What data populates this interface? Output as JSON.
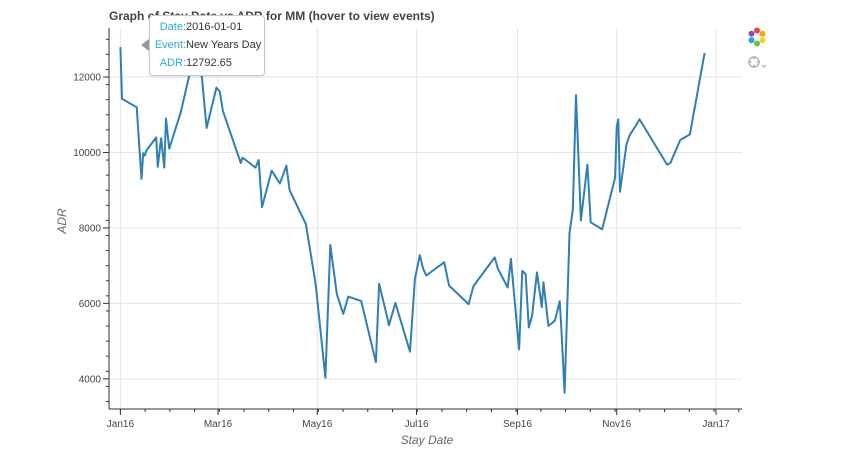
{
  "title": "Graph of Stay Date vs ADR for MM (hover to view events)",
  "tooltip": {
    "date_key": "Date:",
    "date_val": "2016-01-01",
    "event_key": "Event:",
    "event_val": "New Years Day",
    "adr_key": "ADR:",
    "adr_val": "12792.65"
  },
  "toolbar": {
    "logo": "bokeh-logo-icon",
    "hover": "crosshair-hover-icon"
  },
  "colors": {
    "line": "#2f7fb5",
    "grid": "#e5e5e5",
    "tooltip_key": "#26aae1"
  },
  "chart_data": {
    "type": "line",
    "xlabel": "Stay Date",
    "ylabel": "ADR",
    "xlim": [
      "2015-12-25",
      "2017-01-17"
    ],
    "ylim": [
      3200,
      13300
    ],
    "grid": true,
    "x_ticks": [
      {
        "label": "Jan16",
        "date": "2016-01-01"
      },
      {
        "label": "Mar16",
        "date": "2016-03-01"
      },
      {
        "label": "May16",
        "date": "2016-05-01"
      },
      {
        "label": "Jul16",
        "date": "2016-07-01"
      },
      {
        "label": "Sep16",
        "date": "2016-09-01"
      },
      {
        "label": "Nov16",
        "date": "2016-11-01"
      },
      {
        "label": "Jan17",
        "date": "2017-01-01"
      }
    ],
    "y_ticks": [
      4000,
      6000,
      8000,
      10000,
      12000
    ],
    "series": [
      {
        "color": "#2f7fb5",
        "x": [
          "2016-01-01",
          "2016-01-02",
          "2016-01-11",
          "2016-01-14",
          "2016-01-15",
          "2016-01-16",
          "2016-01-17",
          "2016-01-23",
          "2016-01-24",
          "2016-01-26",
          "2016-01-28",
          "2016-01-29",
          "2016-01-31",
          "2016-02-07",
          "2016-02-14",
          "2016-02-20",
          "2016-02-23",
          "2016-02-29",
          "2016-03-02",
          "2016-03-04",
          "2016-03-15",
          "2016-03-16",
          "2016-03-17",
          "2016-03-18",
          "2016-03-24",
          "2016-03-26",
          "2016-03-28",
          "2016-04-03",
          "2016-04-08",
          "2016-04-12",
          "2016-04-14",
          "2016-04-24",
          "2016-04-30",
          "2016-05-06",
          "2016-05-09",
          "2016-05-13",
          "2016-05-17",
          "2016-05-20",
          "2016-05-28",
          "2016-06-06",
          "2016-06-08",
          "2016-06-13",
          "2016-06-14",
          "2016-06-18",
          "2016-06-27",
          "2016-06-30",
          "2016-07-03",
          "2016-07-05",
          "2016-07-07",
          "2016-07-18",
          "2016-07-21",
          "2016-08-02",
          "2016-08-05",
          "2016-08-18",
          "2016-08-20",
          "2016-08-26",
          "2016-08-28",
          "2016-08-30",
          "2016-09-02",
          "2016-09-04",
          "2016-09-06",
          "2016-09-08",
          "2016-09-10",
          "2016-09-13",
          "2016-09-16",
          "2016-09-17",
          "2016-09-20",
          "2016-09-24",
          "2016-09-27",
          "2016-09-28",
          "2016-09-30",
          "2016-10-03",
          "2016-10-05",
          "2016-10-07",
          "2016-10-10",
          "2016-10-14",
          "2016-10-16",
          "2016-10-23",
          "2016-10-31",
          "2016-11-01",
          "2016-11-02",
          "2016-11-03",
          "2016-11-07",
          "2016-11-09",
          "2016-11-12",
          "2016-11-15",
          "2016-12-02",
          "2016-12-04",
          "2016-12-10",
          "2016-12-16",
          "2016-12-25"
        ],
        "y": [
          12792.65,
          11420,
          11200,
          9300,
          9980,
          9920,
          10050,
          10400,
          9620,
          10380,
          9600,
          10900,
          10100,
          11050,
          12350,
          12020,
          10650,
          11720,
          11620,
          11100,
          9720,
          9860,
          9830,
          9800,
          9600,
          9800,
          8550,
          9520,
          9180,
          9650,
          9000,
          8100,
          6500,
          4030,
          7550,
          6250,
          5720,
          6180,
          6060,
          4440,
          6520,
          5620,
          5420,
          6010,
          4720,
          6640,
          7280,
          6920,
          6740,
          7090,
          6470,
          5980,
          6460,
          7220,
          6920,
          6420,
          7180,
          6210,
          4780,
          6860,
          6780,
          5360,
          5680,
          6820,
          5900,
          6560,
          5400,
          5540,
          6060,
          5310,
          3630,
          7860,
          8480,
          11520,
          8200,
          9680,
          8150,
          7960,
          9330,
          10680,
          10880,
          8960,
          10220,
          10460,
          10660,
          10880,
          9680,
          9720,
          10330,
          10480,
          12640
        ]
      }
    ]
  }
}
